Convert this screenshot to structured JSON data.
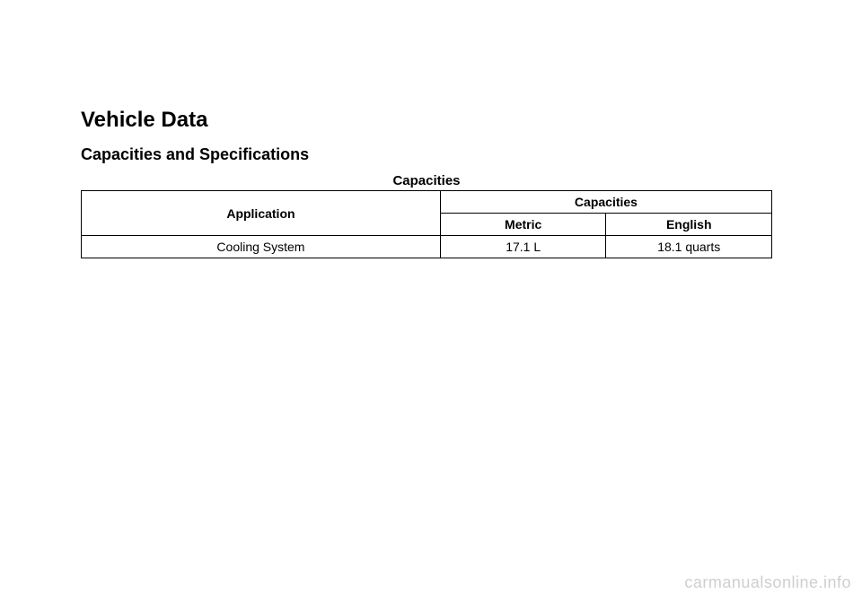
{
  "section_title": "Vehicle Data",
  "subsection_title": "Capacities and Specifications",
  "table": {
    "caption": "Capacities",
    "headers": {
      "application": "Application",
      "capacities": "Capacities",
      "metric": "Metric",
      "english": "English"
    },
    "rows": [
      {
        "application": "Cooling System",
        "metric": "17.1 L",
        "english": "18.1 quarts"
      }
    ]
  },
  "watermark": "carmanualsonline.info",
  "styles": {
    "page_bg": "#ffffff",
    "text_color": "#000000",
    "border_color": "#000000",
    "watermark_color": "#cfcfcf",
    "section_title_fontsize": 24,
    "subsection_title_fontsize": 18,
    "caption_fontsize": 15,
    "table_fontsize": 14,
    "watermark_fontsize": 18
  }
}
